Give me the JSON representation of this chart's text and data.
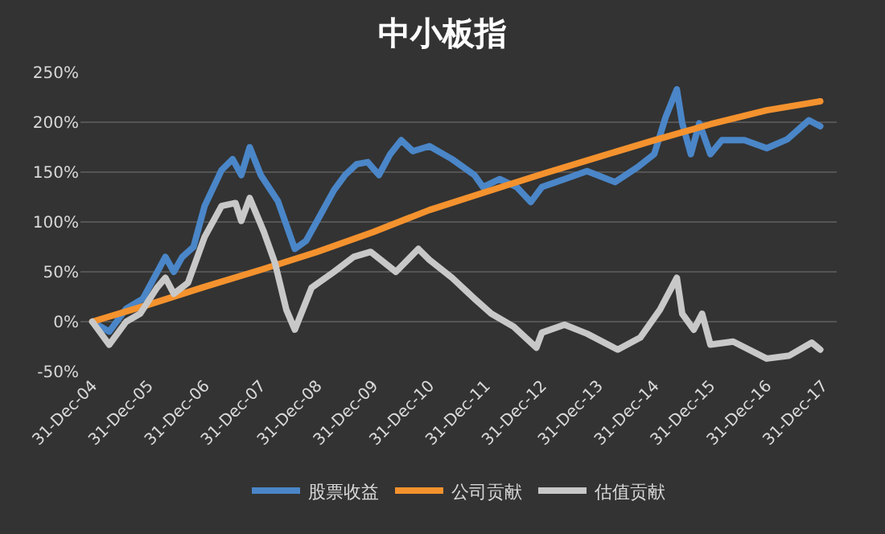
{
  "chart_data": {
    "type": "line",
    "title": "中小板指",
    "xlim": [
      "2004-10-15",
      "2018-03-31"
    ],
    "xticks": [
      {
        "value": "2004-12-31",
        "label": "31-Dec-04"
      },
      {
        "value": "2005-12-31",
        "label": "31-Dec-05"
      },
      {
        "value": "2006-12-31",
        "label": "31-Dec-06"
      },
      {
        "value": "2007-12-31",
        "label": "31-Dec-07"
      },
      {
        "value": "2008-12-31",
        "label": "31-Dec-08"
      },
      {
        "value": "2009-12-31",
        "label": "31-Dec-09"
      },
      {
        "value": "2010-12-31",
        "label": "31-Dec-10"
      },
      {
        "value": "2011-12-31",
        "label": "31-Dec-11"
      },
      {
        "value": "2012-12-31",
        "label": "31-Dec-12"
      },
      {
        "value": "2013-12-31",
        "label": "31-Dec-13"
      },
      {
        "value": "2014-12-31",
        "label": "31-Dec-14"
      },
      {
        "value": "2015-12-31",
        "label": "31-Dec-15"
      },
      {
        "value": "2016-12-31",
        "label": "31-Dec-16"
      },
      {
        "value": "2017-12-31",
        "label": "31-Dec-17"
      }
    ],
    "ylim": [
      -50,
      250
    ],
    "yticks": [
      {
        "value": -50,
        "label": "-50%"
      },
      {
        "value": 0,
        "label": "0%"
      },
      {
        "value": 50,
        "label": "50%"
      },
      {
        "value": 100,
        "label": "100%"
      },
      {
        "value": 150,
        "label": "150%"
      },
      {
        "value": 200,
        "label": "200%"
      },
      {
        "value": 250,
        "label": "250%"
      }
    ],
    "grid": "y",
    "legend": "bottom",
    "marker": "none",
    "line_style": "solid",
    "series": [
      {
        "name": "股票收益",
        "color": "#4a86c8",
        "x": [
          "2004-12-31",
          "2005-04-20",
          "2005-08-08",
          "2005-11-25",
          "2006-04-20",
          "2006-06-14",
          "2006-08-08",
          "2006-10-20",
          "2006-12-31",
          "2007-04-20",
          "2007-07-01",
          "2007-08-26",
          "2007-10-20",
          "2007-12-31",
          "2008-04-20",
          "2008-08-08",
          "2008-10-20",
          "2008-12-31",
          "2009-04-20",
          "2009-07-01",
          "2009-09-14",
          "2009-11-25",
          "2010-02-06",
          "2010-04-20",
          "2010-07-01",
          "2010-09-14",
          "2010-12-31",
          "2011-05-27",
          "2011-10-20",
          "2011-12-14",
          "2012-04-01",
          "2012-07-20",
          "2012-10-20",
          "2012-12-31",
          "2013-05-27",
          "2013-10-20",
          "2014-04-20",
          "2014-09-14",
          "2014-12-31",
          "2015-03-15",
          "2015-05-27",
          "2015-07-01",
          "2015-08-26",
          "2015-10-20",
          "2015-12-31",
          "2016-03-15",
          "2016-08-08",
          "2016-12-31",
          "2017-05-15",
          "2017-10-01",
          "2017-12-14"
        ],
        "values": [
          0,
          -10,
          13,
          23,
          65,
          50,
          65,
          75,
          116,
          152,
          163,
          147,
          175,
          147,
          121,
          73,
          81,
          101,
          132,
          147,
          158,
          160,
          147,
          168,
          182,
          171,
          176,
          163,
          147,
          135,
          143,
          135,
          120,
          135,
          143,
          151,
          140,
          155,
          168,
          205,
          233,
          199,
          168,
          199,
          168,
          182,
          182,
          174,
          183,
          202,
          196
        ]
      },
      {
        "name": "公司贡献",
        "color": "#f4922e",
        "x": [
          "2004-12-31",
          "2005-12-31",
          "2006-12-31",
          "2007-12-31",
          "2008-12-31",
          "2009-12-31",
          "2010-12-31",
          "2011-12-31",
          "2012-12-31",
          "2013-12-31",
          "2014-12-31",
          "2015-12-31",
          "2016-12-31",
          "2017-12-14"
        ],
        "values": [
          0,
          17,
          35,
          52,
          70,
          90,
          112,
          130,
          148,
          165,
          182,
          198,
          212,
          221
        ]
      },
      {
        "name": "估值贡献",
        "color": "#c8c8c8",
        "x": [
          "2004-12-31",
          "2005-04-20",
          "2005-08-08",
          "2005-11-07",
          "2006-02-24",
          "2006-04-20",
          "2006-06-14",
          "2006-09-14",
          "2006-12-31",
          "2007-04-20",
          "2007-07-20",
          "2007-08-26",
          "2007-10-20",
          "2008-01-20",
          "2008-04-01",
          "2008-06-14",
          "2008-08-08",
          "2008-11-25",
          "2009-04-20",
          "2009-08-26",
          "2009-12-14",
          "2010-05-27",
          "2010-10-20",
          "2010-12-31",
          "2011-05-27",
          "2011-10-20",
          "2012-02-06",
          "2012-07-01",
          "2012-11-25",
          "2012-12-31",
          "2013-05-27",
          "2013-10-20",
          "2014-05-08",
          "2014-10-01",
          "2015-02-06",
          "2015-05-27",
          "2015-07-01",
          "2015-09-14",
          "2015-11-07",
          "2015-12-31",
          "2016-05-27",
          "2016-12-31",
          "2017-05-27",
          "2017-10-20",
          "2017-12-14"
        ],
        "values": [
          0,
          -23,
          0,
          8,
          34,
          44,
          28,
          39,
          85,
          116,
          119,
          101,
          124,
          90,
          59,
          12,
          -8,
          34,
          50,
          65,
          70,
          50,
          73,
          62,
          44,
          23,
          8,
          -5,
          -26,
          -11,
          -3,
          -12,
          -28,
          -16,
          12,
          44,
          8,
          -8,
          8,
          -23,
          -20,
          -37,
          -34,
          -21,
          -28
        ]
      }
    ]
  }
}
